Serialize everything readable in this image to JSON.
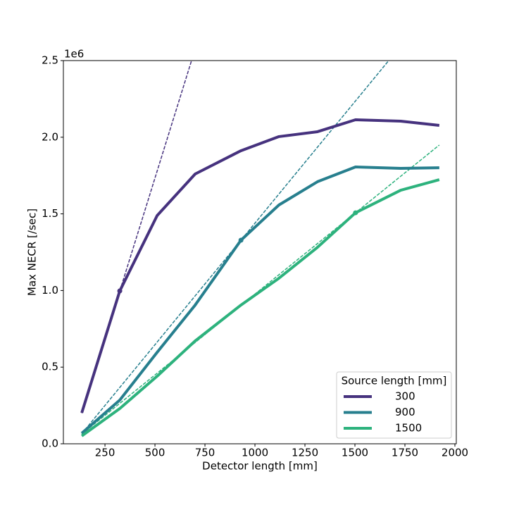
{
  "chart_data": {
    "type": "line",
    "xlabel": "Detector length [mm]",
    "ylabel": "Max NECR [/sec]",
    "y_offset_label": "1e6",
    "x": [
      134,
      324,
      511,
      701,
      930,
      1120,
      1313,
      1503,
      1729,
      1922
    ],
    "series": [
      {
        "name": "300",
        "color": "#46327e",
        "values": [
          0.202,
          0.997,
          1.489,
          1.76,
          1.912,
          2.004,
          2.036,
          2.114,
          2.105,
          2.077
        ]
      },
      {
        "name": "900",
        "color": "#277f8e",
        "values": [
          0.069,
          0.285,
          0.597,
          0.905,
          1.328,
          1.558,
          1.71,
          1.806,
          1.797,
          1.801
        ]
      },
      {
        "name": "1500",
        "color": "#2db27d",
        "values": [
          0.051,
          0.23,
          0.441,
          0.671,
          0.905,
          1.08,
          1.282,
          1.507,
          1.654,
          1.723
        ]
      }
    ],
    "fit_lines": [
      {
        "color": "#46327e",
        "x": [
          134,
          683
        ],
        "values": [
          0.2,
          2.5
        ]
      },
      {
        "color": "#277f8e",
        "x": [
          134,
          1669
        ],
        "values": [
          0.066,
          2.5
        ]
      },
      {
        "color": "#2db27d",
        "x": [
          134,
          1922
        ],
        "values": [
          0.063,
          1.949
        ]
      }
    ],
    "reference_points": {
      "x": [
        324,
        930,
        1503
      ],
      "values": [
        0.997,
        1.328,
        1.507
      ],
      "colors": [
        "#46327e",
        "#277f8e",
        "#2db27d"
      ]
    },
    "legend_title": "Source length [mm]",
    "legend": "lower right",
    "xlim": [
      42,
      2007
    ],
    "ylim": [
      0,
      2.5
    ],
    "xticks": [
      250,
      500,
      750,
      1000,
      1250,
      1500,
      1750,
      2000
    ],
    "yticks": [
      {
        "value": 0,
        "label": "0.0"
      },
      0.5,
      {
        "value": 1,
        "label": "1.0"
      },
      1.5,
      {
        "value": 2,
        "label": "2.0"
      },
      2.5
    ]
  }
}
